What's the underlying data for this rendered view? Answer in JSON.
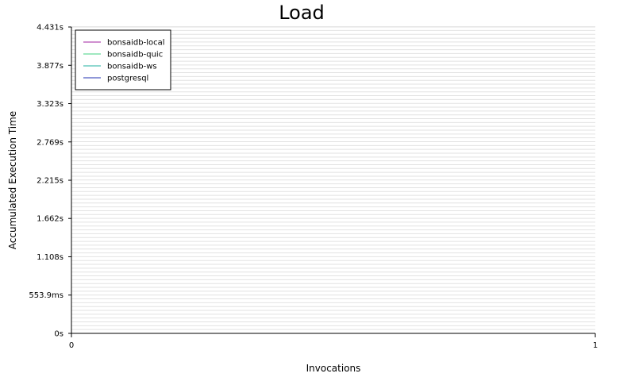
{
  "chart_data": {
    "type": "line",
    "title": "Load",
    "xlabel": "Invocations",
    "ylabel": "Accumulated Execution Time",
    "xlim": [
      0,
      1
    ],
    "ylim": [
      0,
      4.431
    ],
    "x_ticks": [
      {
        "value": 0,
        "label": "0"
      },
      {
        "value": 1,
        "label": "1"
      }
    ],
    "y_ticks": [
      {
        "value": 0,
        "label": "0s"
      },
      {
        "value": 0.5539,
        "label": "553.9ms"
      },
      {
        "value": 1.108,
        "label": "1.108s"
      },
      {
        "value": 1.662,
        "label": "1.662s"
      },
      {
        "value": 2.215,
        "label": "2.215s"
      },
      {
        "value": 2.769,
        "label": "2.769s"
      },
      {
        "value": 3.323,
        "label": "3.323s"
      },
      {
        "value": 3.877,
        "label": "3.877s"
      },
      {
        "value": 4.431,
        "label": "4.431s"
      }
    ],
    "grid": true,
    "legend_position": "top-left",
    "series": [
      {
        "name": "bonsaidb-local",
        "color": "#a020a0",
        "points": []
      },
      {
        "name": "bonsaidb-quic",
        "color": "#40d080",
        "points": []
      },
      {
        "name": "bonsaidb-ws",
        "color": "#20b0a0",
        "points": []
      },
      {
        "name": "postgresql",
        "color": "#2030b0",
        "points": []
      }
    ]
  }
}
